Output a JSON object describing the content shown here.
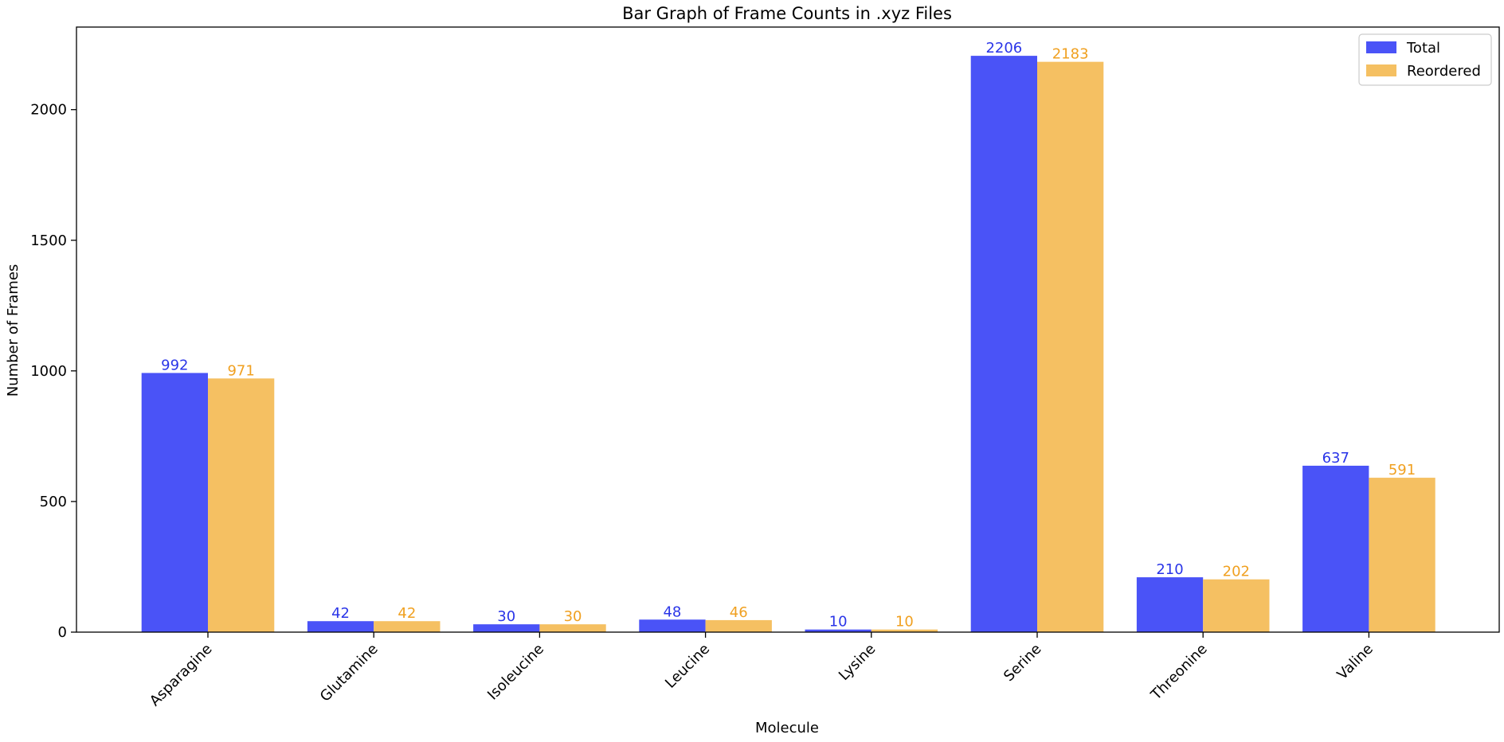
{
  "chart_data": {
    "type": "bar",
    "title": "Bar Graph of Frame Counts in .xyz Files",
    "xlabel": "Molecule",
    "ylabel": "Number of Frames",
    "categories": [
      "Asparagine",
      "Glutamine",
      "Isoleucine",
      "Leucine",
      "Lysine",
      "Serine",
      "Threonine",
      "Valine"
    ],
    "series": [
      {
        "name": "Total",
        "color": "#4a53f7",
        "label_color": "#2a35e8",
        "values": [
          992,
          42,
          30,
          48,
          10,
          2206,
          210,
          637
        ]
      },
      {
        "name": "Reordered",
        "color": "#f5c062",
        "label_color": "#f0a020",
        "values": [
          971,
          42,
          30,
          46,
          10,
          2183,
          202,
          591
        ]
      }
    ],
    "ylim": [
      0,
      2316
    ],
    "yticks": [
      0,
      500,
      1000,
      1500,
      2000
    ],
    "grid": false,
    "legend_position": "top-right",
    "data_labels": true
  }
}
